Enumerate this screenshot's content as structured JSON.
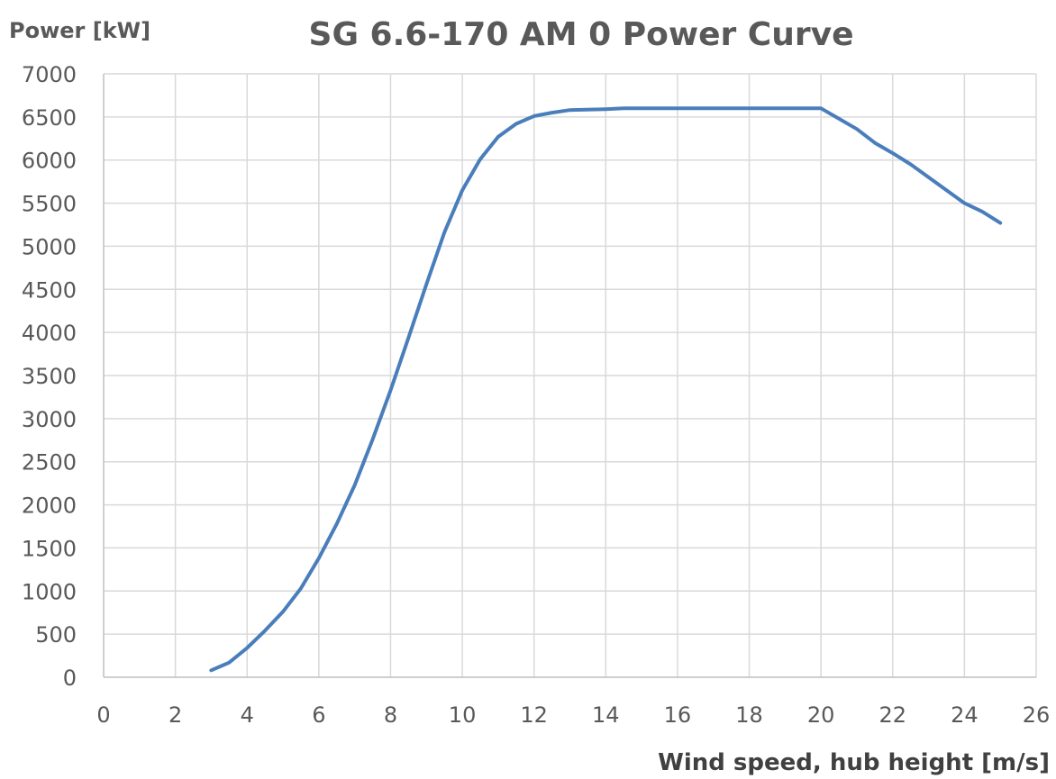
{
  "chart_data": {
    "type": "line",
    "title": "SG 6.6-170 AM 0 Power Curve",
    "ylabel": "Power [kW]",
    "xlabel": "Wind speed, hub height [m/s]",
    "xlim": [
      0,
      26
    ],
    "ylim": [
      0,
      7000
    ],
    "xticks": [
      0,
      2,
      4,
      6,
      8,
      10,
      12,
      14,
      16,
      18,
      20,
      22,
      24,
      26
    ],
    "yticks": [
      0,
      500,
      1000,
      1500,
      2000,
      2500,
      3000,
      3500,
      4000,
      4500,
      5000,
      5500,
      6000,
      6500,
      7000
    ],
    "grid": true,
    "legend": "none",
    "series": [
      {
        "color": "#4a7ebb",
        "x": [
          3,
          3.5,
          4,
          4.5,
          5,
          5.5,
          6,
          6.5,
          7,
          7.5,
          8,
          8.5,
          9,
          9.5,
          10,
          10.5,
          11,
          11.5,
          12,
          12.5,
          13,
          14,
          14.5,
          15,
          20,
          21,
          21.5,
          22,
          22.5,
          23,
          23.5,
          24,
          24.5,
          25
        ],
        "y": [
          80,
          170,
          340,
          540,
          760,
          1030,
          1380,
          1780,
          2230,
          2760,
          3330,
          3940,
          4560,
          5160,
          5650,
          6010,
          6270,
          6420,
          6510,
          6550,
          6580,
          6590,
          6600,
          6600,
          6600,
          6360,
          6200,
          6080,
          5950,
          5800,
          5650,
          5500,
          5400,
          5270
        ]
      }
    ]
  }
}
